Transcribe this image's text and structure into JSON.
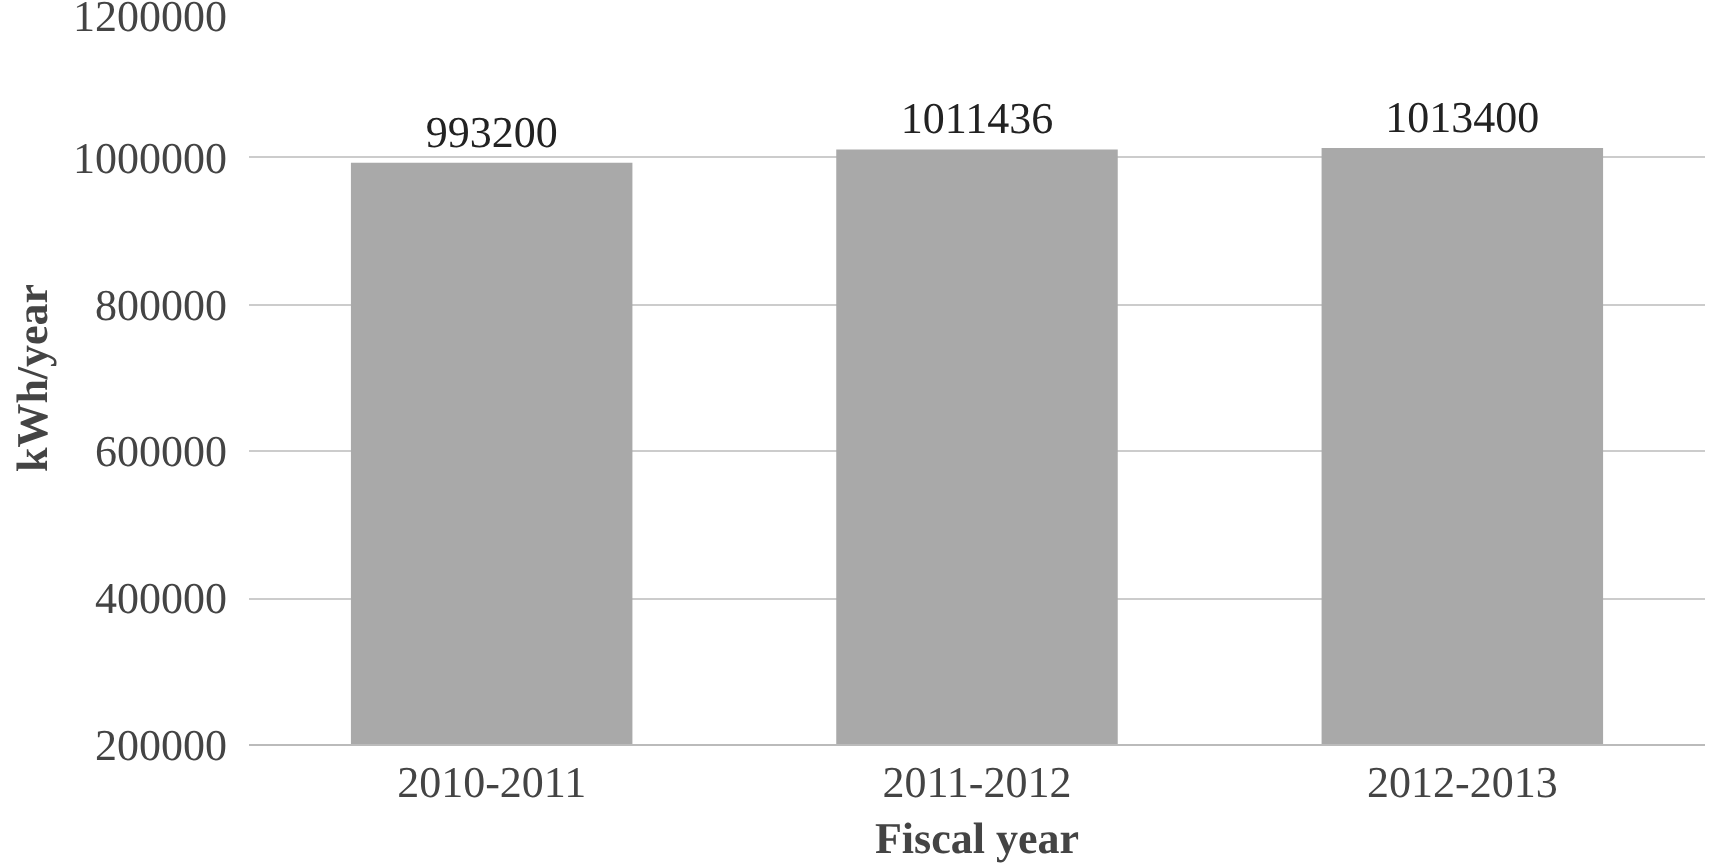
{
  "chart_data": {
    "type": "bar",
    "xlabel": "Fiscal year",
    "ylabel": "kWh/year",
    "categories": [
      "2010-2011",
      "2011-2012",
      "2012-2013"
    ],
    "values": [
      993200,
      1011436,
      1013400
    ],
    "color": "#a9a9a9",
    "ylim": [
      200000,
      1200000
    ],
    "yticks": [
      200000,
      400000,
      600000,
      800000,
      1000000,
      1200000
    ],
    "grid": "y",
    "data_labels": true
  }
}
